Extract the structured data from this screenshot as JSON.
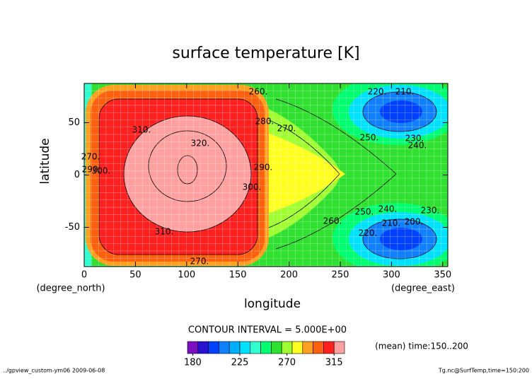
{
  "chart_data": {
    "type": "contour",
    "title": "surface temperature [K]",
    "xlabel": "longitude",
    "ylabel": "latitude",
    "x_unit": "(degree_east)",
    "y_unit": "(degree_north)",
    "xlim": [
      0,
      355
    ],
    "ylim": [
      -87.5,
      87.5
    ],
    "xticks": [
      0,
      50,
      100,
      150,
      200,
      250,
      300,
      350
    ],
    "yticks": [
      -50,
      0,
      50
    ],
    "grid": true,
    "contour_interval": "CONTOUR INTERVAL = 5.000E+00",
    "note": "(mean) time:150..200",
    "footer_left": "../gpview_custom-ym06  2009-06-08",
    "footer_right": "Tg.nc@SurfTemp,time=150:200",
    "contour_labels": [
      {
        "value": 260,
        "label": "260."
      },
      {
        "value": 270,
        "label": "270."
      },
      {
        "value": 280,
        "label": "280."
      },
      {
        "value": 250,
        "label": "250."
      },
      {
        "value": 240,
        "label": "240."
      },
      {
        "value": 230,
        "label": "230."
      },
      {
        "value": 220,
        "label": "220."
      },
      {
        "value": 210,
        "label": "210."
      },
      {
        "value": 310,
        "label": "310."
      },
      {
        "value": 320,
        "label": "320."
      },
      {
        "value": 290,
        "label": "290."
      },
      {
        "value": 300,
        "label": "300."
      },
      {
        "value": 260,
        "label": "260."
      },
      {
        "value": 250,
        "label": "250."
      },
      {
        "value": 240,
        "label": "240."
      },
      {
        "value": 230,
        "label": "230."
      },
      {
        "value": 220,
        "label": "220."
      },
      {
        "value": 210,
        "label": "210."
      },
      {
        "value": 200,
        "label": "200."
      },
      {
        "value": 310,
        "label": "310."
      },
      {
        "value": 270,
        "label": "270."
      },
      {
        "value": 270,
        "label": "270."
      },
      {
        "value": 290,
        "label": "290."
      },
      {
        "value": 300,
        "label": "300."
      }
    ],
    "colorbar": {
      "levels": [
        175,
        185,
        195,
        205,
        215,
        225,
        235,
        245,
        255,
        265,
        275,
        285,
        295,
        305,
        315,
        325
      ],
      "ticks": [
        180,
        225,
        270,
        315
      ],
      "colors": [
        "#7a10c0",
        "#2a10d0",
        "#0040ff",
        "#1080ff",
        "#00b0ff",
        "#00e0ff",
        "#30ffd0",
        "#00ff70",
        "#30e030",
        "#a0ff30",
        "#ffff20",
        "#ffa020",
        "#ff6010",
        "#ff2020",
        "#ffa0a0"
      ]
    }
  }
}
